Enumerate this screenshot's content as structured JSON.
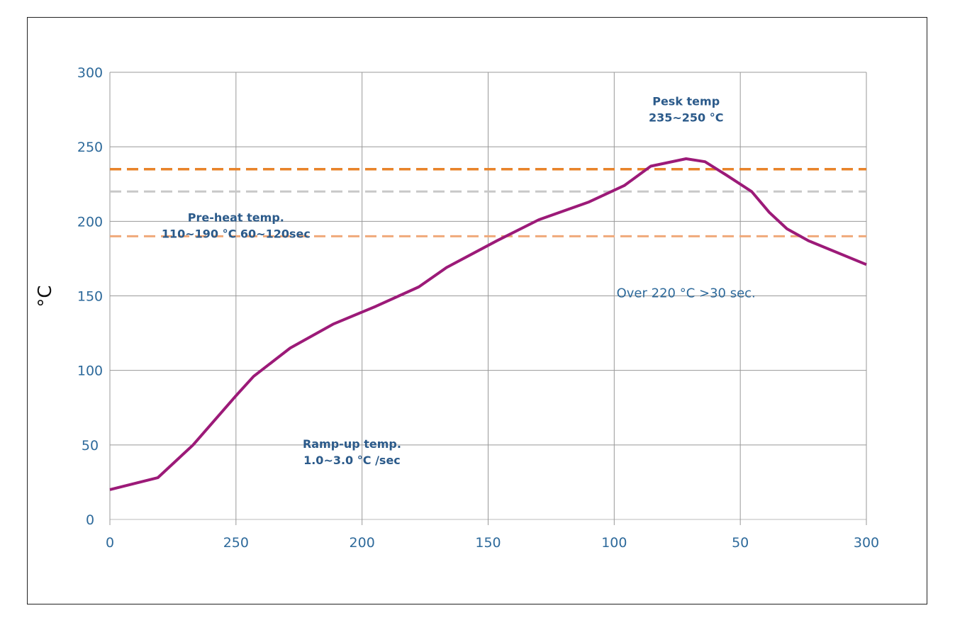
{
  "chart_data": {
    "type": "line",
    "title": "",
    "xlabel": "",
    "ylabel": "°C",
    "ylim": [
      0,
      300
    ],
    "yticks": [
      "0",
      "50",
      "100",
      "150",
      "200",
      "250",
      "300"
    ],
    "xticks": [
      "0",
      "250",
      "200",
      "150",
      "100",
      "50",
      "300"
    ],
    "grid": true,
    "x_note_units": "tick index (0 = first tick, 6 = last tick)",
    "series": [
      {
        "color": "#9c1a78",
        "x": [
          0,
          0.38,
          0.66,
          1.0,
          1.14,
          1.43,
          1.77,
          2.11,
          2.45,
          2.67,
          3.07,
          3.4,
          3.8,
          4.08,
          4.29,
          4.57,
          4.72,
          4.89,
          5.09,
          5.23,
          5.37,
          5.54,
          6.0
        ],
        "y": [
          20,
          28,
          50,
          83,
          96,
          115,
          131,
          143,
          156,
          169,
          187,
          201,
          213,
          224,
          237,
          242,
          240,
          231,
          220,
          206,
          195,
          187,
          171
        ]
      }
    ],
    "reference_lines": [
      {
        "y": 235,
        "color": "#e8832a",
        "style": "dashed"
      },
      {
        "y": 220,
        "color": "#c8c8c8",
        "style": "dashed"
      },
      {
        "y": 190,
        "color": "#f0a97a",
        "style": "dashed"
      }
    ],
    "annotations": [
      {
        "lines": [
          "Pesk temp",
          "235~250 °C"
        ],
        "at": [
          4.57,
          278
        ]
      },
      {
        "lines": [
          "Pre-heat temp.",
          "110~190 °C 60~120sec"
        ],
        "at": [
          1.0,
          200
        ]
      },
      {
        "lines": [
          "Over 220 °C >30 sec."
        ],
        "at": [
          4.57,
          149
        ]
      },
      {
        "lines": [
          "Ramp-up temp.",
          "1.0~3.0 °C /sec"
        ],
        "at": [
          1.92,
          48
        ]
      }
    ]
  }
}
